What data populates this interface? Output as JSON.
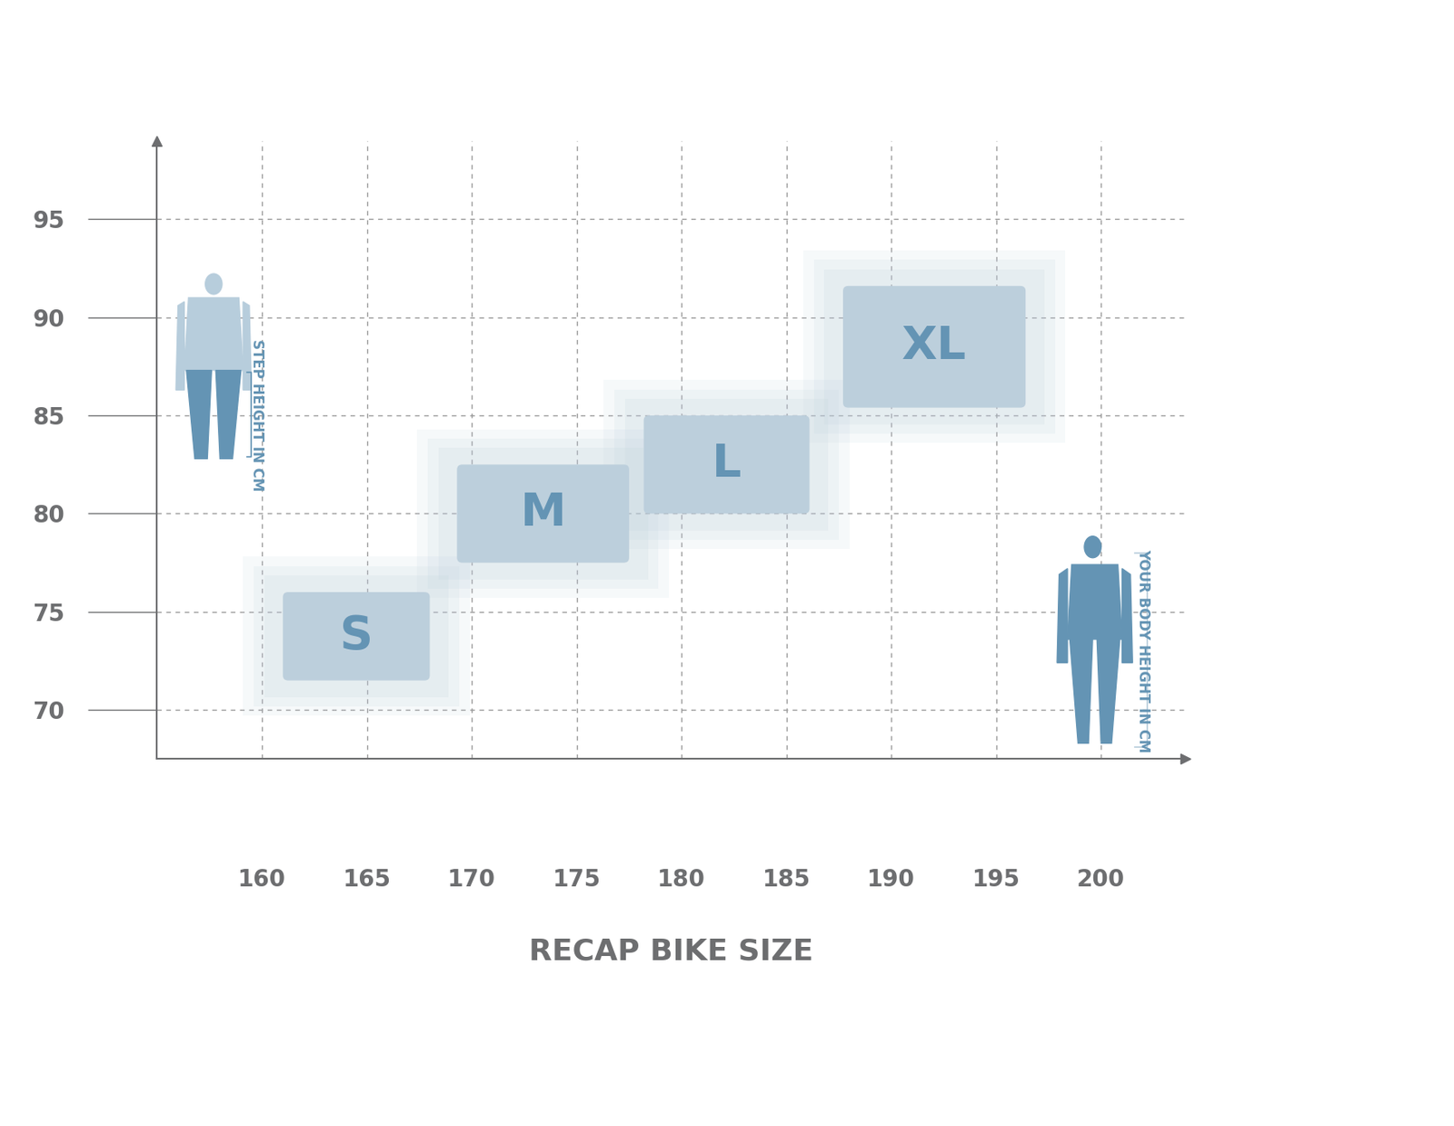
{
  "chart_data": {
    "type": "range",
    "xlabel": "RECAP BIKE SIZE",
    "sizes": [
      {
        "name": "S",
        "x": [
          161,
          168
        ],
        "y": [
          71.5,
          76
        ]
      },
      {
        "name": "M",
        "x": [
          169.3,
          177.5
        ],
        "y": [
          77.5,
          82.5
        ]
      },
      {
        "name": "L",
        "x": [
          178.2,
          186.1
        ],
        "y": [
          80,
          85
        ]
      },
      {
        "name": "XL",
        "x": [
          187.7,
          196.4
        ],
        "y": [
          85.4,
          91.6
        ]
      }
    ],
    "color": "#bccfdc",
    "xlim": [
      155,
      204
    ],
    "ylim": [
      67.5,
      99
    ],
    "xticks": [
      160,
      165,
      170,
      175,
      180,
      185,
      190,
      195,
      200
    ],
    "yticks": [
      70,
      75,
      80,
      85,
      90,
      95
    ],
    "grid": true,
    "annotations": [
      "STEP HEIGHT IN CM",
      "YOUR BODY HEIGHT IN CM"
    ]
  }
}
